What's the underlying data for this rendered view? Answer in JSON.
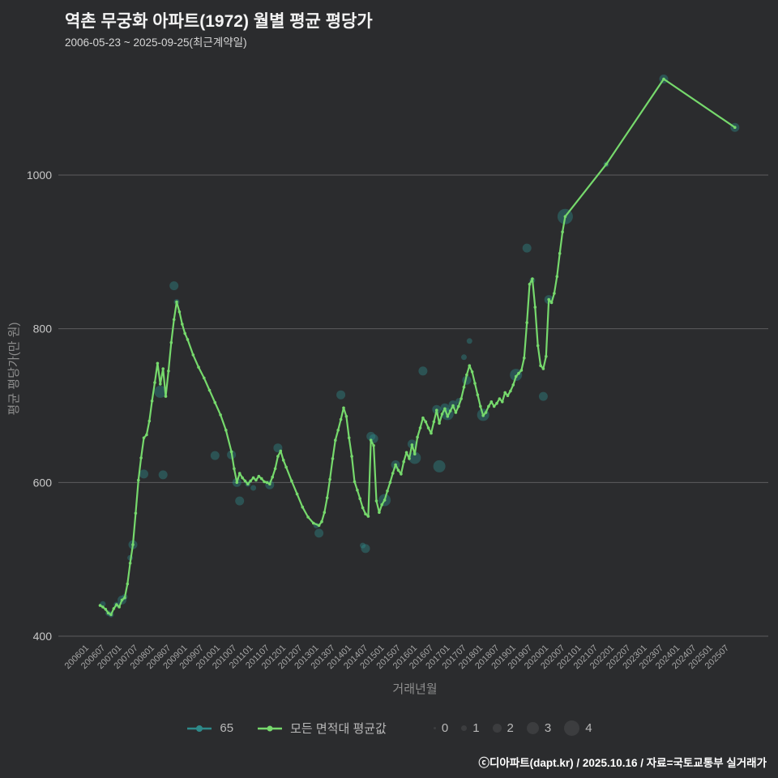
{
  "title": "역촌 무궁화 아파트(1972) 월별 평균 평당가",
  "subtitle": "2006-05-23 ~ 2025-09-25(최근계약일)",
  "footer": "ⓒ디아파트(dapt.kr) / 2025.10.16 / 자료=국토교통부 실거래가",
  "colors": {
    "background": "#2b2c2e",
    "line_green": "#76d96c",
    "bubble_teal": "#2e8a8a",
    "grid": "#5c5d5f",
    "ytick": "#c8c8c8",
    "xtick": "#a5a5a5",
    "axis_label": "#8e8e8e",
    "title": "#f3f3f3",
    "subtitle": "#d6d6d6",
    "footer": "#ffffff",
    "legend_text": "#b9b9b9",
    "size_dot": "#3c3d3f"
  },
  "legend": {
    "series": [
      {
        "label": "65",
        "type": "line-dot",
        "color": "#2e8a8a"
      },
      {
        "label": "모든 면적대 평균값",
        "type": "line",
        "color": "#76d96c"
      }
    ],
    "sizes": [
      {
        "label": "0",
        "size": 0
      },
      {
        "label": "1",
        "size": 1
      },
      {
        "label": "2",
        "size": 2
      },
      {
        "label": "3",
        "size": 3
      },
      {
        "label": "4",
        "size": 4
      }
    ]
  },
  "chart_data": {
    "type": "line",
    "title": "역촌 무궁화 아파트(1972) 월별 평균 평당가",
    "xlabel": "거래년월",
    "ylabel": "평균 평당가(만 원)",
    "y_ticks": [
      400,
      600,
      800,
      1000
    ],
    "ylim": [
      380,
      1160
    ],
    "x_ticks": [
      "200601",
      "200607",
      "200701",
      "200707",
      "200801",
      "200807",
      "200901",
      "200907",
      "201001",
      "201007",
      "201101",
      "201107",
      "201201",
      "201207",
      "201301",
      "201307",
      "201401",
      "201407",
      "201501",
      "201507",
      "201601",
      "201607",
      "201701",
      "201707",
      "201801",
      "201807",
      "201901",
      "201907",
      "202001",
      "202007",
      "202101",
      "202107",
      "202201",
      "202207",
      "202301",
      "202307",
      "202401",
      "202407",
      "202501",
      "202507"
    ],
    "series": [
      {
        "name": "모든 면적대 평균값",
        "type": "line",
        "color": "#76d96c",
        "points": [
          [
            "200605",
            440
          ],
          [
            "200606",
            438
          ],
          [
            "200607",
            435
          ],
          [
            "200608",
            430
          ],
          [
            "200609",
            428
          ],
          [
            "200610",
            436
          ],
          [
            "200611",
            441
          ],
          [
            "200612",
            438
          ],
          [
            "200701",
            447
          ],
          [
            "200702",
            450
          ],
          [
            "200703",
            468
          ],
          [
            "200704",
            495
          ],
          [
            "200705",
            519
          ],
          [
            "200706",
            560
          ],
          [
            "200707",
            603
          ],
          [
            "200708",
            632
          ],
          [
            "200709",
            658
          ],
          [
            "200710",
            662
          ],
          [
            "200711",
            680
          ],
          [
            "200712",
            706
          ],
          [
            "200801",
            730
          ],
          [
            "200802",
            755
          ],
          [
            "200803",
            728
          ],
          [
            "200804",
            748
          ],
          [
            "200805",
            712
          ],
          [
            "200806",
            745
          ],
          [
            "200807",
            782
          ],
          [
            "200808",
            812
          ],
          [
            "200809",
            835
          ],
          [
            "200810",
            822
          ],
          [
            "200811",
            806
          ],
          [
            "200812",
            794
          ],
          [
            "200901",
            786
          ],
          [
            "200903",
            766
          ],
          [
            "200905",
            750
          ],
          [
            "200907",
            736
          ],
          [
            "200909",
            720
          ],
          [
            "200911",
            704
          ],
          [
            "201001",
            688
          ],
          [
            "201003",
            668
          ],
          [
            "201005",
            640
          ],
          [
            "201006",
            618
          ],
          [
            "201007",
            600
          ],
          [
            "201008",
            612
          ],
          [
            "201009",
            606
          ],
          [
            "201010",
            602
          ],
          [
            "201011",
            598
          ],
          [
            "201012",
            602
          ],
          [
            "201101",
            606
          ],
          [
            "201102",
            603
          ],
          [
            "201103",
            608
          ],
          [
            "201104",
            605
          ],
          [
            "201105",
            601
          ],
          [
            "201106",
            600
          ],
          [
            "201107",
            598
          ],
          [
            "201108",
            607
          ],
          [
            "201109",
            618
          ],
          [
            "201110",
            634
          ],
          [
            "201111",
            641
          ],
          [
            "201112",
            629
          ],
          [
            "201201",
            620
          ],
          [
            "201203",
            602
          ],
          [
            "201205",
            585
          ],
          [
            "201207",
            568
          ],
          [
            "201209",
            555
          ],
          [
            "201211",
            547
          ],
          [
            "201301",
            544
          ],
          [
            "201302",
            549
          ],
          [
            "201303",
            561
          ],
          [
            "201304",
            580
          ],
          [
            "201305",
            604
          ],
          [
            "201306",
            631
          ],
          [
            "201307",
            655
          ],
          [
            "201308",
            668
          ],
          [
            "201309",
            682
          ],
          [
            "201310",
            697
          ],
          [
            "201311",
            686
          ],
          [
            "201312",
            658
          ],
          [
            "201401",
            634
          ],
          [
            "201402",
            601
          ],
          [
            "201403",
            590
          ],
          [
            "201404",
            579
          ],
          [
            "201405",
            567
          ],
          [
            "201406",
            559
          ],
          [
            "201407",
            556
          ],
          [
            "201408",
            655
          ],
          [
            "201409",
            648
          ],
          [
            "201410",
            576
          ],
          [
            "201411",
            561
          ],
          [
            "201412",
            571
          ],
          [
            "201501",
            577
          ],
          [
            "201502",
            589
          ],
          [
            "201503",
            600
          ],
          [
            "201504",
            612
          ],
          [
            "201505",
            623
          ],
          [
            "201506",
            616
          ],
          [
            "201507",
            611
          ],
          [
            "201508",
            627
          ],
          [
            "201509",
            639
          ],
          [
            "201510",
            631
          ],
          [
            "201511",
            649
          ],
          [
            "201512",
            637
          ],
          [
            "201601",
            659
          ],
          [
            "201602",
            671
          ],
          [
            "201603",
            684
          ],
          [
            "201604",
            679
          ],
          [
            "201605",
            671
          ],
          [
            "201606",
            664
          ],
          [
            "201607",
            679
          ],
          [
            "201608",
            694
          ],
          [
            "201609",
            677
          ],
          [
            "201610",
            689
          ],
          [
            "201611",
            696
          ],
          [
            "201612",
            686
          ],
          [
            "201701",
            693
          ],
          [
            "201702",
            700
          ],
          [
            "201703",
            691
          ],
          [
            "201704",
            699
          ],
          [
            "201705",
            709
          ],
          [
            "201706",
            724
          ],
          [
            "201707",
            740
          ],
          [
            "201708",
            752
          ],
          [
            "201709",
            744
          ],
          [
            "201710",
            729
          ],
          [
            "201711",
            714
          ],
          [
            "201712",
            699
          ],
          [
            "201801",
            687
          ],
          [
            "201802",
            691
          ],
          [
            "201803",
            699
          ],
          [
            "201804",
            705
          ],
          [
            "201805",
            699
          ],
          [
            "201806",
            703
          ],
          [
            "201807",
            709
          ],
          [
            "201808",
            705
          ],
          [
            "201809",
            717
          ],
          [
            "201810",
            713
          ],
          [
            "201811",
            719
          ],
          [
            "201812",
            727
          ],
          [
            "201901",
            738
          ],
          [
            "201902",
            742
          ],
          [
            "201903",
            746
          ],
          [
            "201904",
            762
          ],
          [
            "201905",
            808
          ],
          [
            "201906",
            858
          ],
          [
            "201907",
            865
          ],
          [
            "201908",
            828
          ],
          [
            "201909",
            778
          ],
          [
            "201910",
            752
          ],
          [
            "201911",
            748
          ],
          [
            "201912",
            764
          ],
          [
            "202001",
            838
          ],
          [
            "202002",
            834
          ],
          [
            "202003",
            846
          ],
          [
            "202004",
            868
          ],
          [
            "202005",
            898
          ],
          [
            "202006",
            926
          ],
          [
            "202007",
            946
          ],
          [
            "202110",
            1014
          ],
          [
            "202307",
            1125
          ],
          [
            "202509",
            1062
          ]
        ]
      },
      {
        "name": "65",
        "type": "bubble",
        "color": "#2e8a8a",
        "size_legend": [
          0,
          1,
          2,
          3,
          4
        ],
        "points": [
          [
            "200606",
            442,
            1
          ],
          [
            "200608",
            430,
            1
          ],
          [
            "200609",
            428,
            1
          ],
          [
            "200611",
            441,
            1
          ],
          [
            "200701",
            447,
            2
          ],
          [
            "200702",
            451,
            1
          ],
          [
            "200704",
            502,
            1
          ],
          [
            "200705",
            519,
            2
          ],
          [
            "200709",
            611,
            2
          ],
          [
            "200803",
            718,
            3
          ],
          [
            "200804",
            610,
            2
          ],
          [
            "200808",
            856,
            2
          ],
          [
            "200809",
            835,
            1
          ],
          [
            "200911",
            635,
            2
          ],
          [
            "201005",
            636,
            2
          ],
          [
            "201007",
            600,
            2
          ],
          [
            "201008",
            576,
            2
          ],
          [
            "201011",
            598,
            1
          ],
          [
            "201101",
            593,
            1
          ],
          [
            "201107",
            597,
            2
          ],
          [
            "201110",
            645,
            2
          ],
          [
            "201212",
            544,
            1
          ],
          [
            "201301",
            534,
            2
          ],
          [
            "201309",
            714,
            2
          ],
          [
            "201405",
            518,
            1
          ],
          [
            "201406",
            514,
            2
          ],
          [
            "201408",
            660,
            2
          ],
          [
            "201409",
            657,
            2
          ],
          [
            "201501",
            577,
            3
          ],
          [
            "201505",
            623,
            2
          ],
          [
            "201511",
            650,
            2
          ],
          [
            "201512",
            632,
            3
          ],
          [
            "201603",
            745,
            2
          ],
          [
            "201608",
            695,
            2
          ],
          [
            "201609",
            621,
            3
          ],
          [
            "201611",
            697,
            2
          ],
          [
            "201612",
            689,
            3
          ],
          [
            "201702",
            701,
            2
          ],
          [
            "201704",
            706,
            1
          ],
          [
            "201706",
            763,
            1
          ],
          [
            "201707",
            733,
            2
          ],
          [
            "201708",
            784,
            1
          ],
          [
            "201801",
            688,
            3
          ],
          [
            "201901",
            740,
            3
          ],
          [
            "201905",
            905,
            2
          ],
          [
            "201907",
            863,
            1
          ],
          [
            "201911",
            712,
            2
          ],
          [
            "202001",
            838,
            2
          ],
          [
            "202007",
            946,
            4
          ],
          [
            "202110",
            1014,
            1
          ],
          [
            "202307",
            1125,
            2
          ],
          [
            "202509",
            1062,
            2
          ]
        ]
      }
    ]
  }
}
